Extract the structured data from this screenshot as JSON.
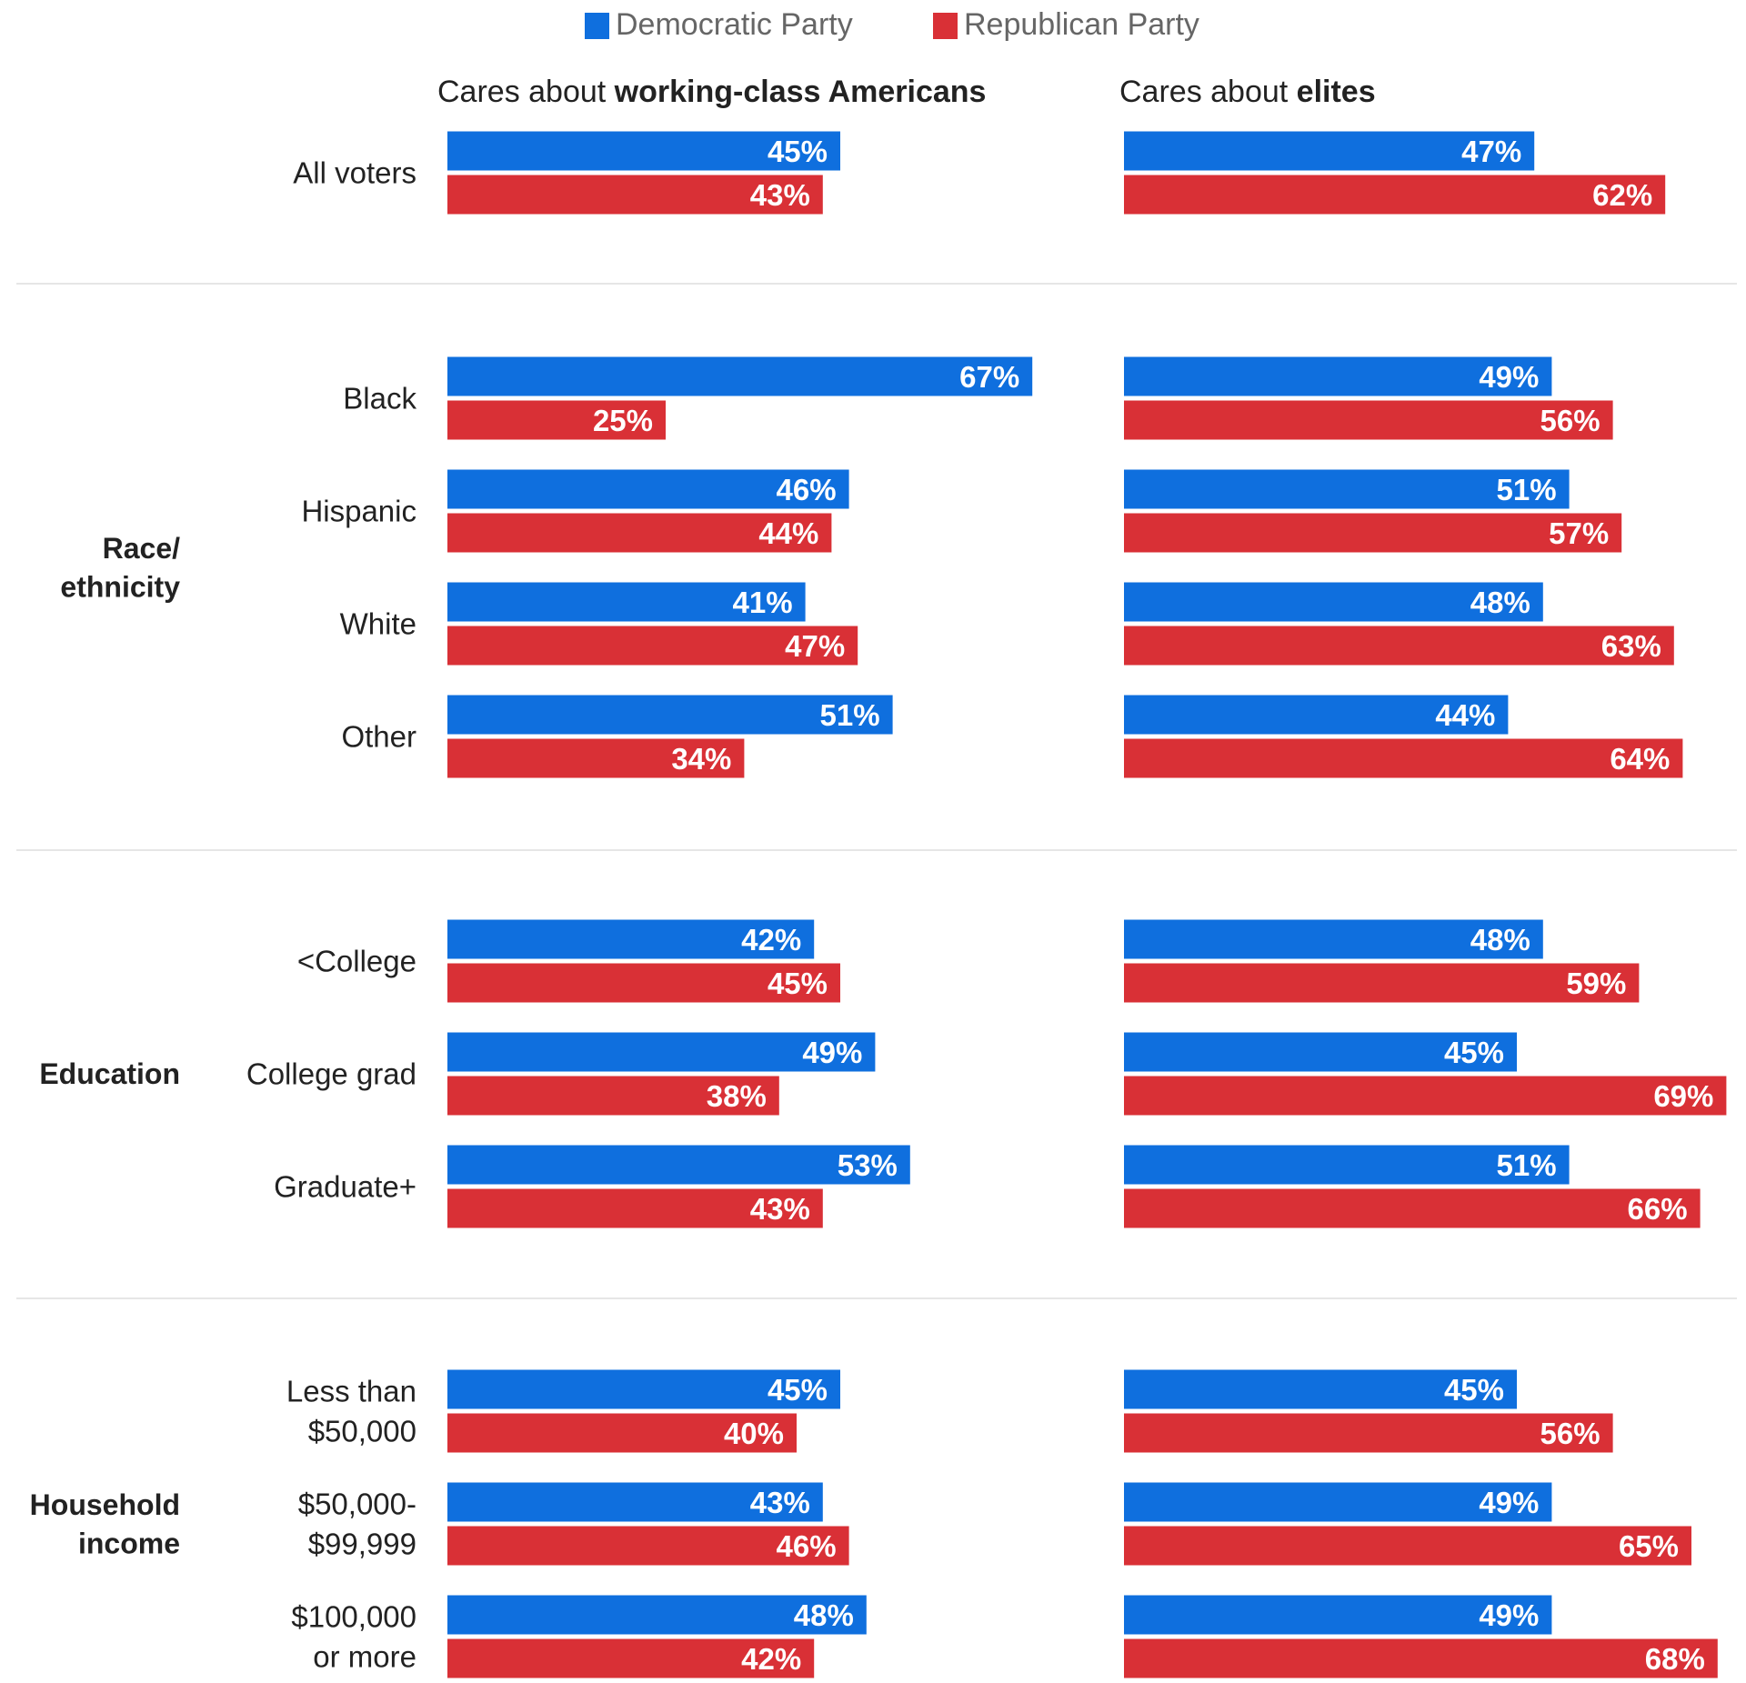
{
  "legend": {
    "items": [
      {
        "name": "Democratic Party",
        "color": "#0f6fde"
      },
      {
        "name": "Republican Party",
        "color": "#d93036"
      }
    ]
  },
  "panels": [
    {
      "title_prefix": "Cares about ",
      "title_bold": "working-class Americans"
    },
    {
      "title_prefix": "Cares about ",
      "title_bold": "elites"
    }
  ],
  "chart_data": {
    "type": "bar",
    "orientation": "horizontal",
    "value_format": "percent",
    "series_colors": {
      "Democratic Party": "#0f6fde",
      "Republican Party": "#d93036"
    },
    "groups": [
      {
        "group_label": "",
        "rows": [
          {
            "label": "All voters",
            "working_class": {
              "Democratic Party": 45,
              "Republican Party": 43
            },
            "elites": {
              "Democratic Party": 47,
              "Republican Party": 62
            }
          }
        ]
      },
      {
        "group_label": "Race/\nethnicity",
        "rows": [
          {
            "label": "Black",
            "working_class": {
              "Democratic Party": 67,
              "Republican Party": 25
            },
            "elites": {
              "Democratic Party": 49,
              "Republican Party": 56
            }
          },
          {
            "label": "Hispanic",
            "working_class": {
              "Democratic Party": 46,
              "Republican Party": 44
            },
            "elites": {
              "Democratic Party": 51,
              "Republican Party": 57
            }
          },
          {
            "label": "White",
            "working_class": {
              "Democratic Party": 41,
              "Republican Party": 47
            },
            "elites": {
              "Democratic Party": 48,
              "Republican Party": 63
            }
          },
          {
            "label": "Other",
            "working_class": {
              "Democratic Party": 51,
              "Republican Party": 34
            },
            "elites": {
              "Democratic Party": 44,
              "Republican Party": 64
            }
          }
        ]
      },
      {
        "group_label": "Education",
        "rows": [
          {
            "label": "<College",
            "working_class": {
              "Democratic Party": 42,
              "Republican Party": 45
            },
            "elites": {
              "Democratic Party": 48,
              "Republican Party": 59
            }
          },
          {
            "label": "College grad",
            "working_class": {
              "Democratic Party": 49,
              "Republican Party": 38
            },
            "elites": {
              "Democratic Party": 45,
              "Republican Party": 69
            }
          },
          {
            "label": "Graduate+",
            "working_class": {
              "Democratic Party": 53,
              "Republican Party": 43
            },
            "elites": {
              "Democratic Party": 51,
              "Republican Party": 66
            }
          }
        ]
      },
      {
        "group_label": "Household\nincome",
        "rows": [
          {
            "label": "Less than\n$50,000",
            "working_class": {
              "Democratic Party": 45,
              "Republican Party": 40
            },
            "elites": {
              "Democratic Party": 45,
              "Republican Party": 56
            }
          },
          {
            "label": "$50,000-\n$99,999",
            "working_class": {
              "Democratic Party": 43,
              "Republican Party": 46
            },
            "elites": {
              "Democratic Party": 49,
              "Republican Party": 65
            }
          },
          {
            "label": "$100,000\nor more",
            "working_class": {
              "Democratic Party": 48,
              "Republican Party": 42
            },
            "elites": {
              "Democratic Party": 49,
              "Republican Party": 68
            }
          }
        ]
      }
    ]
  }
}
